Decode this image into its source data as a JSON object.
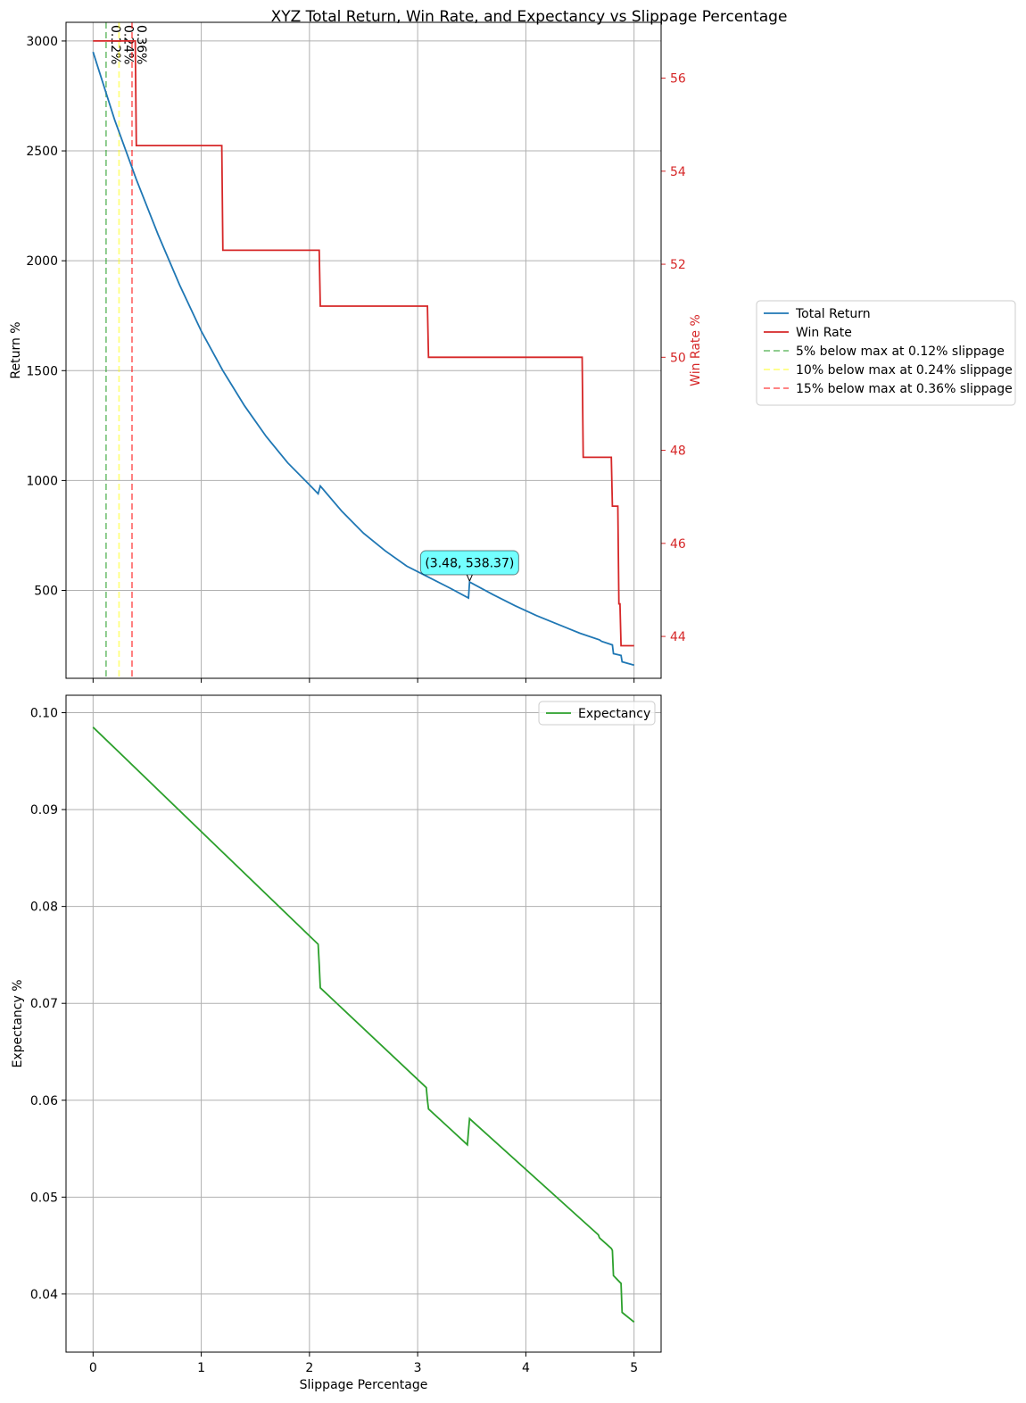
{
  "chart_data": [
    {
      "type": "line",
      "title": "XYZ Total Return, Win Rate, and Expectancy vs Slippage Percentage",
      "xlabel": "",
      "ylabel": "Return %",
      "y2label": "Win Rate %",
      "xlim": [
        -0.25,
        5.25
      ],
      "ylim": [
        100,
        3085
      ],
      "y2lim": [
        43.1,
        57.2
      ],
      "xticks": [
        0,
        1,
        2,
        3,
        4,
        5
      ],
      "yticks": [
        500,
        1000,
        1500,
        2000,
        2500,
        3000
      ],
      "y2ticks": [
        44,
        46,
        48,
        50,
        52,
        54,
        56
      ],
      "grid": true,
      "legend_position": "outside right",
      "series": [
        {
          "name": "Total Return",
          "axis": "left",
          "color": "#1f77b4",
          "x": [
            0,
            0.2,
            0.4,
            0.6,
            0.8,
            1.0,
            1.2,
            1.4,
            1.6,
            1.8,
            2.0,
            2.08,
            2.1,
            2.3,
            2.5,
            2.7,
            2.9,
            3.1,
            3.3,
            3.47,
            3.48,
            3.7,
            3.9,
            4.1,
            4.3,
            4.5,
            4.68,
            4.7,
            4.8,
            4.81,
            4.88,
            4.89,
            5.0
          ],
          "values": [
            2950,
            2640,
            2370,
            2120,
            1890,
            1680,
            1500,
            1340,
            1200,
            1080,
            980,
            940,
            975,
            860,
            760,
            680,
            610,
            560,
            510,
            465,
            538.37,
            480,
            430,
            385,
            345,
            305,
            275,
            268,
            252,
            212,
            204,
            175,
            160
          ]
        },
        {
          "name": "Win Rate",
          "axis": "right",
          "color": "#d62728",
          "x": [
            0,
            0.39,
            0.4,
            1.19,
            1.2,
            2.09,
            2.1,
            3.09,
            3.1,
            4.52,
            4.53,
            4.79,
            4.8,
            4.85,
            4.86,
            4.87,
            4.88,
            5.0
          ],
          "values": [
            56.8,
            56.8,
            54.55,
            54.55,
            52.3,
            52.3,
            51.1,
            51.1,
            50.0,
            50.0,
            47.85,
            47.85,
            46.8,
            46.8,
            44.7,
            44.7,
            43.8,
            43.8
          ]
        }
      ],
      "vlines": [
        {
          "x": 0.12,
          "label": "0.12%",
          "legend": "5% below max at 0.12% slippage",
          "color": "#2ca02c"
        },
        {
          "x": 0.24,
          "label": "0.24%",
          "legend": "10% below max at 0.24% slippage",
          "color": "#ffff00"
        },
        {
          "x": 0.36,
          "label": "0.36%",
          "legend": "15% below max at 0.36% slippage",
          "color": "#ff0000"
        }
      ],
      "annotation": {
        "x": 3.48,
        "y": 538.37,
        "text": "(3.48, 538.37)"
      }
    },
    {
      "type": "line",
      "xlabel": "Slippage Percentage",
      "ylabel": "Expectancy %",
      "xlim": [
        -0.25,
        5.25
      ],
      "ylim": [
        0.034,
        0.1018
      ],
      "xticks": [
        0,
        1,
        2,
        3,
        4,
        5
      ],
      "yticks": [
        0.04,
        0.05,
        0.06,
        0.07,
        0.08,
        0.09,
        0.1
      ],
      "grid": true,
      "legend_position": "top-right",
      "series": [
        {
          "name": "Expectancy",
          "color": "#2ca02c",
          "x": [
            0,
            2.08,
            2.09,
            2.1,
            3.08,
            3.09,
            3.1,
            3.46,
            3.47,
            3.48,
            4.67,
            4.68,
            4.7,
            4.79,
            4.8,
            4.81,
            4.87,
            4.88,
            4.89,
            5.0
          ],
          "values": [
            0.0985,
            0.0761,
            0.074,
            0.0716,
            0.0613,
            0.06,
            0.0591,
            0.0554,
            0.0568,
            0.0581,
            0.0461,
            0.0458,
            0.0456,
            0.0447,
            0.0445,
            0.0419,
            0.0412,
            0.0411,
            0.0381,
            0.0371
          ]
        }
      ]
    }
  ]
}
